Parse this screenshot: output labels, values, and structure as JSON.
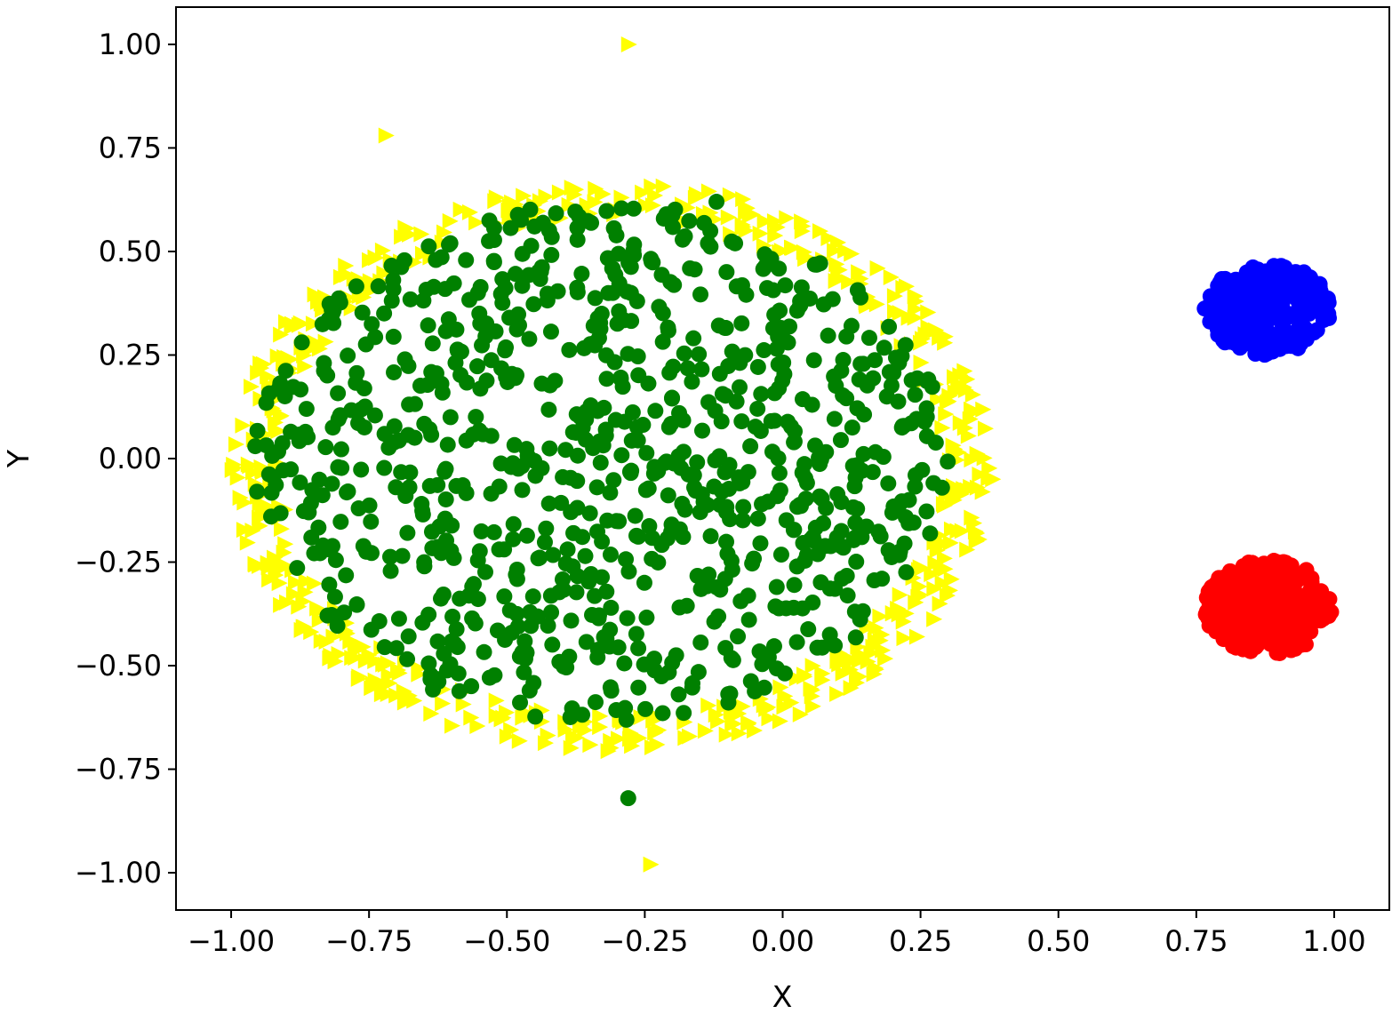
{
  "chart_data": {
    "type": "scatter",
    "title": "",
    "xlabel": "X",
    "ylabel": "Y",
    "xlim": [
      -1.1,
      1.1
    ],
    "ylim": [
      -1.09,
      1.09
    ],
    "grid": false,
    "legend": "none",
    "xticks": [
      "−1.00",
      "−0.75",
      "−0.50",
      "−0.25",
      "0.00",
      "0.25",
      "0.50",
      "0.75",
      "1.00"
    ],
    "yticks": [
      "1.00",
      "0.75",
      "0.50",
      "0.25",
      "0.00",
      "−0.25",
      "−0.50",
      "−0.75",
      "−1.00"
    ],
    "colors": {
      "green": "#008000",
      "yellow": "#ffff00",
      "blue": "#0000ff",
      "red": "#ff0000"
    },
    "series": [
      {
        "marker": "circle",
        "color": "#008000",
        "distribution": {
          "shape": "disk",
          "center": [
            -0.33,
            -0.01
          ],
          "radius": [
            0.0,
            0.63
          ],
          "count": 900
        }
      },
      {
        "marker": "triangle-right",
        "color": "#ffff00",
        "distribution": {
          "shape": "annulus",
          "center": [
            -0.31,
            -0.02
          ],
          "radius": [
            0.6,
            0.69
          ],
          "count": 560
        }
      },
      {
        "marker": "circle",
        "color": "#0000ff",
        "distribution": {
          "shape": "ellipse",
          "center": [
            0.88,
            0.36
          ],
          "radii": [
            0.115,
            0.11
          ],
          "count": 300
        }
      },
      {
        "marker": "circle",
        "color": "#ff0000",
        "distribution": {
          "shape": "ellipse",
          "center": [
            0.88,
            -0.36
          ],
          "radii": [
            0.115,
            0.115
          ],
          "count": 300
        }
      }
    ],
    "points": [
      {
        "series": 0,
        "x": -0.33,
        "y": -0.01
      },
      {
        "series": 0,
        "x": -0.55,
        "y": 0.35
      },
      {
        "series": 0,
        "x": -0.12,
        "y": 0.62
      },
      {
        "series": 0,
        "x": -0.82,
        "y": -0.22
      },
      {
        "series": 0,
        "x": 0.18,
        "y": -0.29
      },
      {
        "series": 0,
        "x": -0.28,
        "y": -0.82
      },
      {
        "series": 1,
        "x": -0.72,
        "y": 0.78
      },
      {
        "series": 1,
        "x": -0.28,
        "y": 1.0
      },
      {
        "series": 1,
        "x": 0.38,
        "y": -0.05
      },
      {
        "series": 1,
        "x": -0.98,
        "y": 0.08
      },
      {
        "series": 1,
        "x": -0.24,
        "y": -0.98
      },
      {
        "series": 1,
        "x": 0.35,
        "y": -0.2
      },
      {
        "series": 2,
        "x": 0.88,
        "y": 0.36
      },
      {
        "series": 2,
        "x": 0.78,
        "y": 0.37
      },
      {
        "series": 2,
        "x": 0.99,
        "y": 0.34
      },
      {
        "series": 3,
        "x": 0.88,
        "y": -0.36
      },
      {
        "series": 3,
        "x": 0.78,
        "y": -0.37
      },
      {
        "series": 3,
        "x": 0.99,
        "y": -0.38
      }
    ]
  }
}
